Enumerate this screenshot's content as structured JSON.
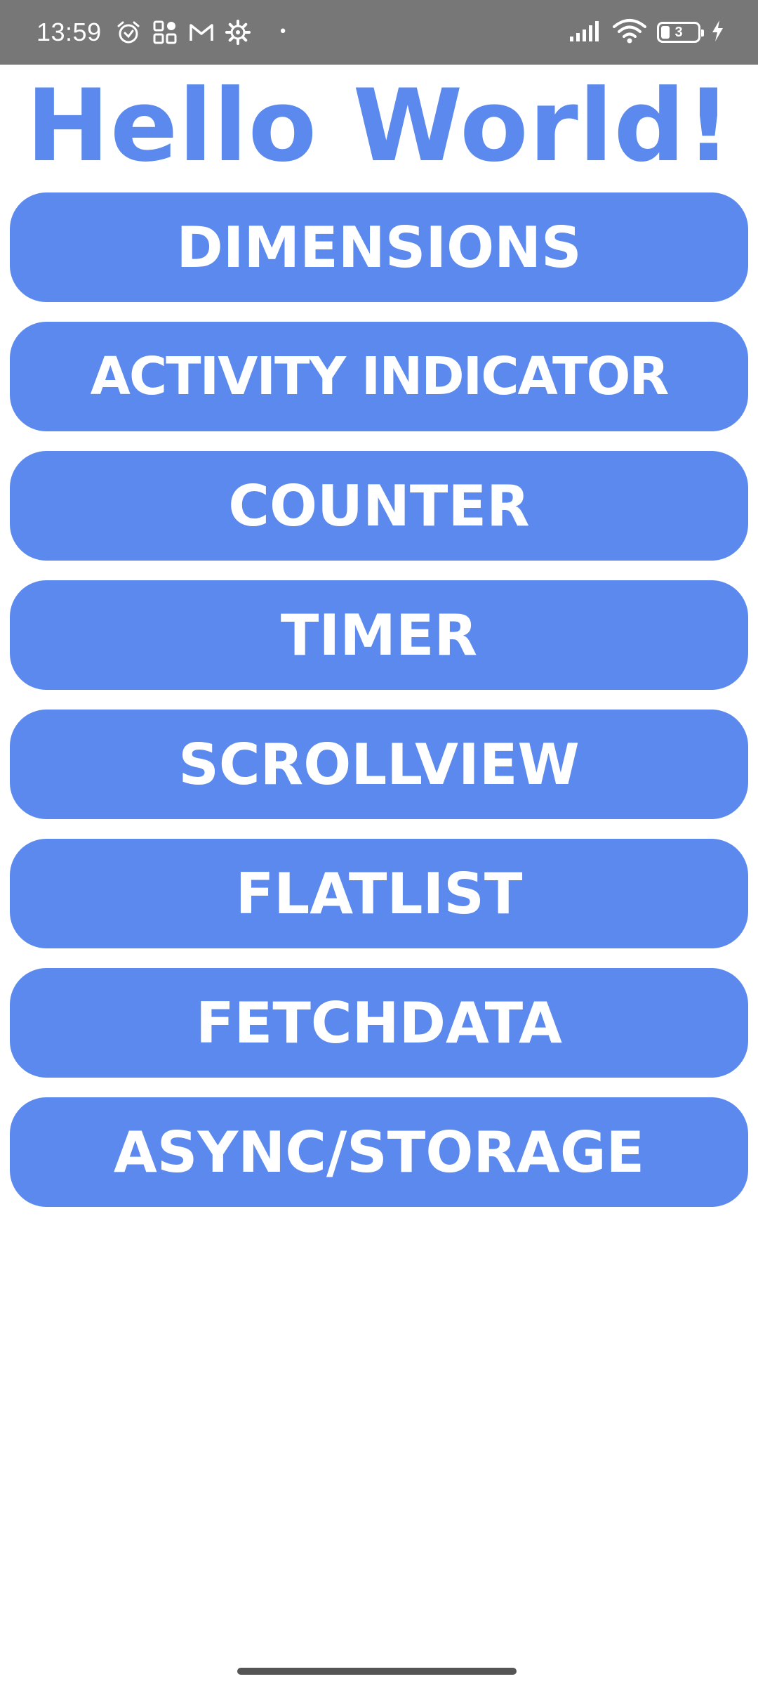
{
  "status_bar": {
    "time": "13:59",
    "icons": [
      "alarm-icon",
      "apps-grid-icon",
      "gmail-icon",
      "settings-gear-icon",
      "notification-dot-icon"
    ],
    "right_icons": [
      "signal-bars-icon",
      "wifi-icon",
      "battery-icon",
      "charging-bolt-icon"
    ],
    "battery_level": "3",
    "colors": {
      "background": "#777777",
      "foreground": "#ffffff"
    }
  },
  "main": {
    "title": "Hello World!",
    "title_color": "#5b89ed",
    "button_color": "#5b89ed",
    "buttons": [
      {
        "label": "DIMENSIONS"
      },
      {
        "label": "ACTIVITY INDICATOR"
      },
      {
        "label": "COUNTER"
      },
      {
        "label": "TIMER"
      },
      {
        "label": "SCROLLVIEW"
      },
      {
        "label": "FLATLIST"
      },
      {
        "label": "FETCHDATA"
      },
      {
        "label": "ASYNC/STORAGE"
      }
    ]
  },
  "navigation": {
    "home_indicator": "home-indicator"
  }
}
